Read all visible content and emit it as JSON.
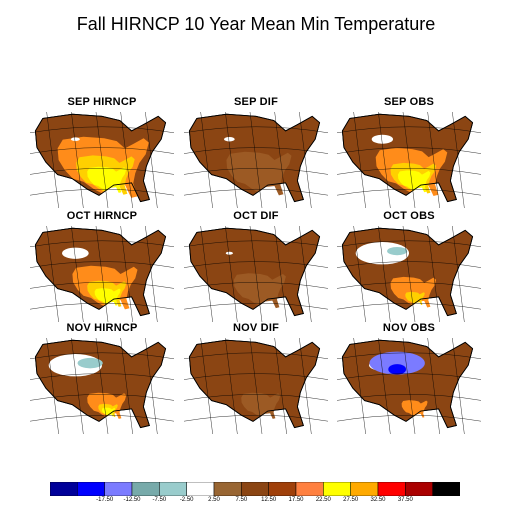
{
  "title": "Fall HIRNCP 10 Year Mean Min Temperature",
  "panels": [
    {
      "label": "SEP HIRNCP",
      "fill": "#8b4513",
      "layers": [
        [
          "#ff8c1a",
          0.7
        ],
        [
          "#ffd000",
          0.45
        ],
        [
          "#ffff00",
          0.3
        ]
      ],
      "white": 0.05,
      "cyan": 0,
      "blue": 0
    },
    {
      "label": "SEP DIF",
      "fill": "#8b4513",
      "layers": [
        [
          "#9c5a24",
          0.5
        ]
      ],
      "white": 0.06,
      "cyan": 0,
      "blue": 0
    },
    {
      "label": "SEP OBS",
      "fill": "#8b4513",
      "layers": [
        [
          "#ff8c1a",
          0.55
        ],
        [
          "#ffd000",
          0.35
        ],
        [
          "#ffff00",
          0.25
        ]
      ],
      "white": 0.12,
      "cyan": 0,
      "blue": 0
    },
    {
      "label": "OCT HIRNCP",
      "fill": "#8b4513",
      "layers": [
        [
          "#ff8c1a",
          0.5
        ],
        [
          "#ffd000",
          0.3
        ],
        [
          "#ffff00",
          0.2
        ]
      ],
      "white": 0.15,
      "cyan": 0,
      "blue": 0
    },
    {
      "label": "OCT DIF",
      "fill": "#8b4513",
      "layers": [
        [
          "#9c5a24",
          0.4
        ]
      ],
      "white": 0.04,
      "cyan": 0,
      "blue": 0
    },
    {
      "label": "OCT OBS",
      "fill": "#8b4513",
      "layers": [
        [
          "#ff8c1a",
          0.35
        ],
        [
          "#ffd000",
          0.15
        ]
      ],
      "white": 0.3,
      "cyan": 0.2,
      "blue": 0
    },
    {
      "label": "NOV HIRNCP",
      "fill": "#8b4513",
      "layers": [
        [
          "#ff8c1a",
          0.3
        ],
        [
          "#ffd000",
          0.15
        ],
        [
          "#ffff00",
          0.1
        ]
      ],
      "white": 0.3,
      "cyan": 0.25,
      "blue": 0
    },
    {
      "label": "NOV DIF",
      "fill": "#8b4513",
      "layers": [
        [
          "#9c5a24",
          0.3
        ]
      ],
      "white": 0,
      "cyan": 0,
      "blue": 0
    },
    {
      "label": "NOV OBS",
      "fill": "#8b4513",
      "layers": [
        [
          "#ff8c1a",
          0.2
        ]
      ],
      "white": 0.15,
      "cyan": 0.55,
      "blue": 0.4
    }
  ],
  "colorbar": {
    "colors": [
      "#000099",
      "#0000ff",
      "#7b7bff",
      "#77aaaa",
      "#99cccc",
      "#ffffff",
      "#996633",
      "#8b4513",
      "#a0400a",
      "#ff8040",
      "#ffff00",
      "#ffaa00",
      "#ff0000",
      "#aa0000",
      "#000000"
    ],
    "ticks": [
      "-17.50",
      "-12.50",
      "-7.50",
      "-2.50",
      "2.50",
      "7.50",
      "12.50",
      "17.50",
      "22.50",
      "27.50",
      "32.50",
      "37.50"
    ]
  }
}
